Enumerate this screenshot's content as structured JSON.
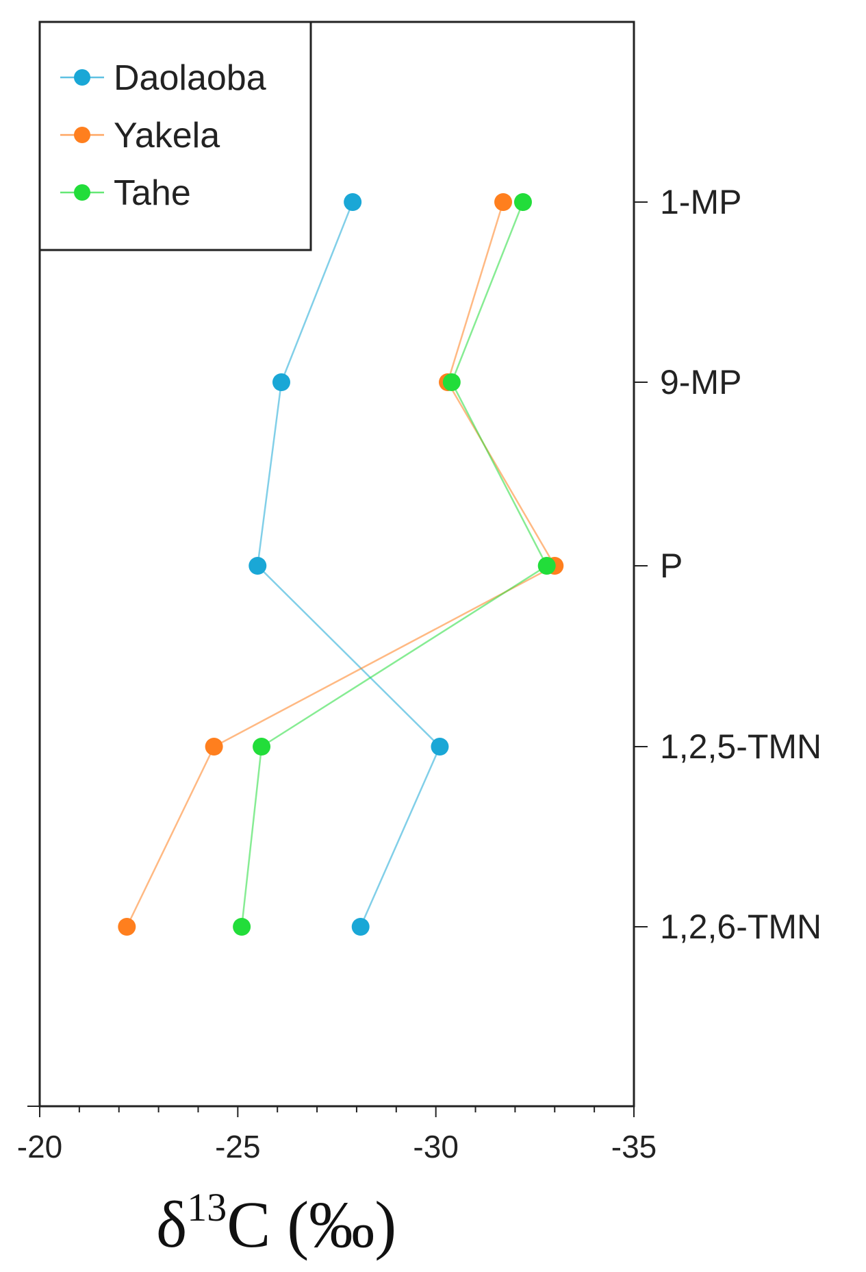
{
  "chart_data": {
    "type": "line",
    "orientation": "horizontal-values",
    "xlabel_main": "δ",
    "xlabel_sup": "13",
    "xlabel_rest": "C (‰)",
    "xlim": [
      -20,
      -35
    ],
    "xticks": [
      -20,
      -25,
      -30,
      -35
    ],
    "xtick_labels": [
      "-20",
      "-25",
      "-30",
      "-35"
    ],
    "categories": [
      "1-MP",
      "9-MP",
      "P",
      "1,2,5-TMN",
      "1,2,6-TMN"
    ],
    "legend_position": "top-left",
    "grid": false,
    "series": [
      {
        "name": "Daolaoba",
        "color": "#1aa7d6",
        "values": [
          -27.9,
          -26.1,
          -25.5,
          -30.1,
          -28.1
        ]
      },
      {
        "name": "Yakela",
        "color": "#ff7f1e",
        "values": [
          -31.7,
          -30.3,
          -33.0,
          -24.4,
          -22.2
        ]
      },
      {
        "name": "Tahe",
        "color": "#22dd3a",
        "values": [
          -32.2,
          -30.4,
          -32.8,
          -25.6,
          -25.1
        ]
      }
    ]
  }
}
